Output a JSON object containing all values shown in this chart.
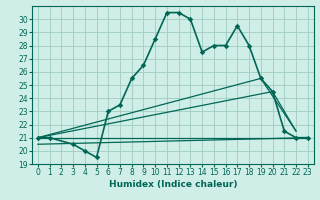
{
  "xlabel": "Humidex (Indice chaleur)",
  "xlim": [
    -0.5,
    23.5
  ],
  "ylim": [
    19,
    31
  ],
  "yticks": [
    19,
    20,
    21,
    22,
    23,
    24,
    25,
    26,
    27,
    28,
    29,
    30
  ],
  "xticks": [
    0,
    1,
    2,
    3,
    4,
    5,
    6,
    7,
    8,
    9,
    10,
    11,
    12,
    13,
    14,
    15,
    16,
    17,
    18,
    19,
    20,
    21,
    22,
    23
  ],
  "bg_color": "#d0eee8",
  "grid_color": "#a0ccc0",
  "line_color": "#006655",
  "curve1_x": [
    0,
    1,
    3,
    4,
    5,
    6,
    7,
    8,
    9,
    10,
    11,
    12,
    13,
    14,
    15,
    16,
    17,
    18,
    19,
    20,
    21,
    22,
    23
  ],
  "curve1_y": [
    21.0,
    21.0,
    20.5,
    20.0,
    19.5,
    23.0,
    23.5,
    25.5,
    26.5,
    28.5,
    30.5,
    30.5,
    30.0,
    27.5,
    28.0,
    28.0,
    29.5,
    28.0,
    25.5,
    24.5,
    21.5,
    21.0,
    21.0
  ],
  "line2_x": [
    0,
    23
  ],
  "line2_y": [
    21.0,
    21.0
  ],
  "line3_x": [
    0,
    19,
    22
  ],
  "line3_y": [
    21.0,
    25.5,
    21.5
  ],
  "line4_x": [
    0,
    20,
    22
  ],
  "line4_y": [
    21.0,
    24.5,
    21.5
  ],
  "line5_x": [
    0,
    23
  ],
  "line5_y": [
    20.5,
    21.0
  ]
}
